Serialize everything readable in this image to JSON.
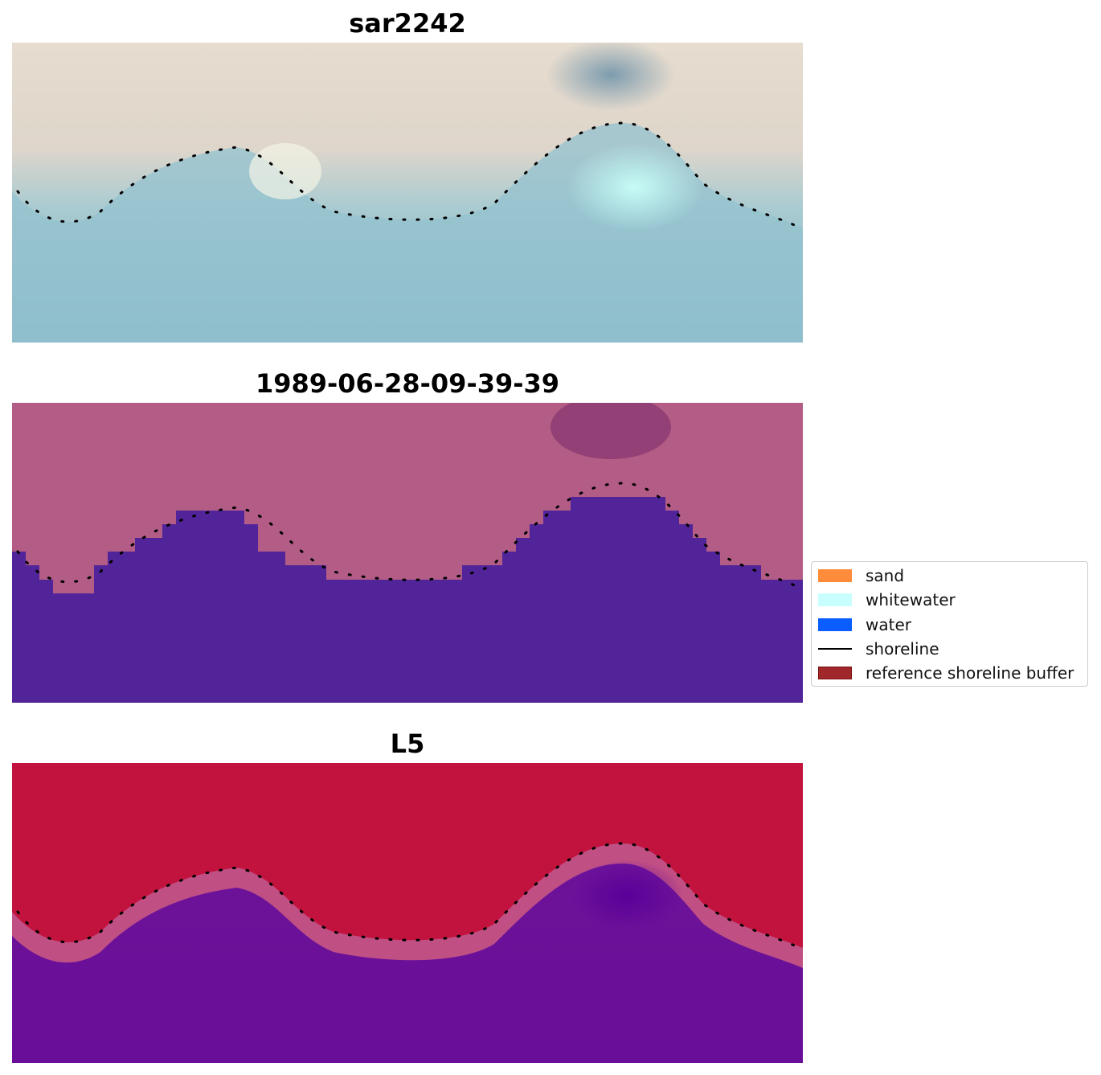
{
  "panels": [
    {
      "title": "sar2242"
    },
    {
      "title": "1989-06-28-09-39-39"
    },
    {
      "title": "L5"
    }
  ],
  "legend": {
    "items": [
      {
        "label": "sand",
        "color": "#ff8c3a",
        "kind": "patch"
      },
      {
        "label": "whitewater",
        "color": "#c8fffe",
        "kind": "patch"
      },
      {
        "label": "water",
        "color": "#0a5eff",
        "kind": "patch"
      },
      {
        "label": "shoreline",
        "color": "#000000",
        "kind": "line"
      },
      {
        "label": "reference shoreline buffer",
        "color": "#a0282a",
        "kind": "patch-edge",
        "edge": "#7a1010"
      }
    ]
  },
  "colors": {
    "rgb_sand": "#e9dcd0",
    "rgb_water": "#86b7c8",
    "rgb_whitewater": "#c6fbf6",
    "class_land": "#b35c85",
    "class_water": "#52249a",
    "index_land": "#c2123e",
    "index_water": "#6a0f9a"
  }
}
